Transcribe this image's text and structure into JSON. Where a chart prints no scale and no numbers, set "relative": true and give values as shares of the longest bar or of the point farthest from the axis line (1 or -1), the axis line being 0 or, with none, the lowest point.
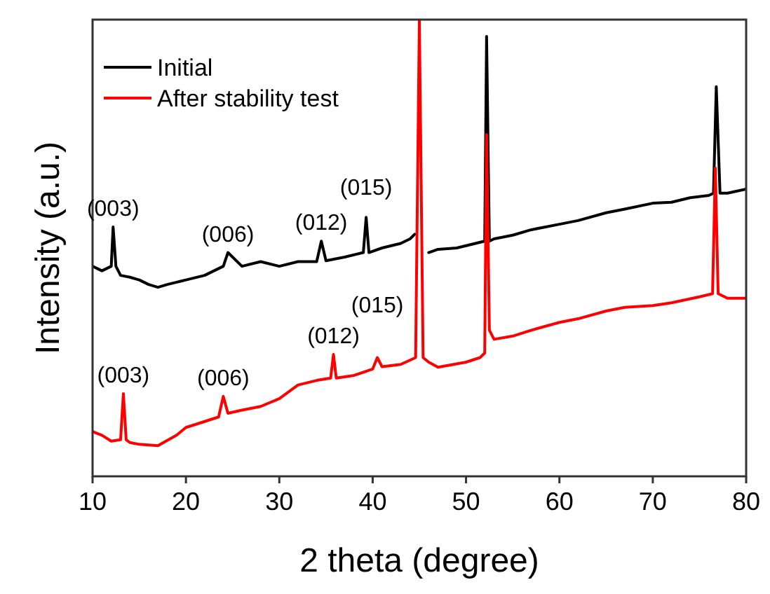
{
  "chart_data": {
    "type": "line",
    "relative": true,
    "xlabel": "2 theta (degree)",
    "ylabel": "Intensity (a.u.)",
    "xlim": [
      10,
      80
    ],
    "xticks": [
      10,
      20,
      30,
      40,
      50,
      60,
      70,
      80
    ],
    "legend": "top left",
    "tick_labels": "x",
    "line_style": "solid",
    "series": [
      {
        "name": "Initial",
        "color": "#000000",
        "x": [
          10,
          11,
          12,
          12.2,
          12.5,
          13,
          14,
          15,
          16,
          17,
          18,
          19,
          20,
          22,
          23,
          24,
          24.5,
          26,
          28,
          30,
          32,
          34,
          34.5,
          35,
          37,
          39,
          39.3,
          39.6,
          41,
          43,
          44,
          44.5,
          45.5,
          46,
          47,
          49,
          51,
          52,
          52.2,
          52.5,
          53,
          55,
          57,
          60,
          62,
          65,
          67,
          70,
          72,
          74,
          76,
          76.5,
          76.8,
          77.2,
          78,
          80
        ],
        "values": [
          0.46,
          0.45,
          0.46,
          0.546,
          0.46,
          0.44,
          0.436,
          0.43,
          0.42,
          0.414,
          0.42,
          0.425,
          0.43,
          0.44,
          0.45,
          0.46,
          0.49,
          0.46,
          0.47,
          0.46,
          0.47,
          0.47,
          0.515,
          0.472,
          0.48,
          0.49,
          0.567,
          0.49,
          0.5,
          0.51,
          0.52,
          0.53,
          null,
          0.49,
          0.497,
          0.5,
          0.51,
          0.515,
          0.963,
          0.515,
          0.52,
          0.528,
          0.54,
          0.552,
          0.56,
          0.577,
          0.585,
          0.598,
          0.6,
          0.61,
          0.615,
          0.62,
          0.853,
          0.62,
          0.62,
          0.629
        ]
      },
      {
        "name": "After stability test",
        "color": "#ff0000",
        "x": [
          10,
          11,
          12,
          13,
          13.3,
          13.6,
          14,
          15,
          17,
          19,
          20,
          22,
          23.5,
          24,
          24.5,
          26,
          28,
          30,
          32,
          34,
          35.5,
          35.8,
          36.1,
          38,
          40,
          40.5,
          41,
          43,
          44.6,
          45,
          45.4,
          46,
          47,
          50,
          51.5,
          52,
          52.2,
          52.5,
          53,
          55,
          57,
          60,
          62,
          65,
          67,
          70,
          72,
          75,
          76.4,
          76.7,
          77,
          78,
          80
        ],
        "values": [
          0.098,
          0.09,
          0.077,
          0.08,
          0.181,
          0.08,
          0.074,
          0.07,
          0.067,
          0.09,
          0.107,
          0.12,
          0.13,
          0.175,
          0.138,
          0.145,
          0.153,
          0.17,
          0.2,
          0.21,
          0.215,
          0.267,
          0.215,
          0.221,
          0.235,
          0.26,
          0.24,
          0.245,
          0.26,
          1,
          0.26,
          0.25,
          0.239,
          0.25,
          0.26,
          0.27,
          0.748,
          0.32,
          0.3,
          0.307,
          0.32,
          0.337,
          0.345,
          0.362,
          0.37,
          0.374,
          0.38,
          0.393,
          0.4,
          0.675,
          0.4,
          0.39,
          0.39
        ]
      }
    ],
    "annotations": [
      {
        "text": "(003)",
        "x": 12.2,
        "y": 0.546
      },
      {
        "text": "(006)",
        "x": 24.5,
        "y": 0.49
      },
      {
        "text": "(012)",
        "x": 34.5,
        "y": 0.515
      },
      {
        "text": "(015)",
        "x": 39.3,
        "y": 0.567
      },
      {
        "text": "(003)",
        "x": 13.3,
        "y": 0.181
      },
      {
        "text": "(006)",
        "x": 24,
        "y": 0.175
      },
      {
        "text": "(012)",
        "x": 35.8,
        "y": 0.267
      },
      {
        "text": "(015)",
        "x": 40.5,
        "y": 0.26
      }
    ]
  }
}
